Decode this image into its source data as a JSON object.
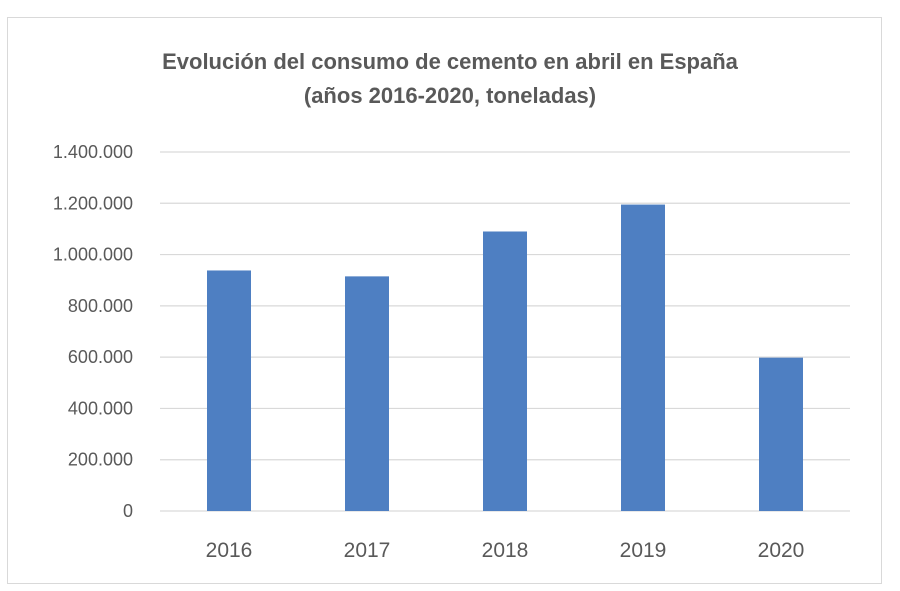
{
  "chart_data": {
    "type": "bar",
    "title": "Evolución del consumo de cemento en abril en España",
    "subtitle": "(años 2016-2020, toneladas)",
    "categories": [
      "2016",
      "2017",
      "2018",
      "2019",
      "2020"
    ],
    "values": [
      938000,
      915000,
      1090000,
      1195000,
      598000
    ],
    "ylim": [
      0,
      1400000
    ],
    "y_ticks": [
      0,
      200000,
      400000,
      600000,
      800000,
      1000000,
      1200000,
      1400000
    ],
    "y_tick_labels": [
      "0",
      "200.000",
      "400.000",
      "600.000",
      "800.000",
      "1.000.000",
      "1.200.000",
      "1.400.000"
    ],
    "grid": true,
    "bar_color": "#4e7fc2",
    "grid_color": "#d9d9d9"
  }
}
